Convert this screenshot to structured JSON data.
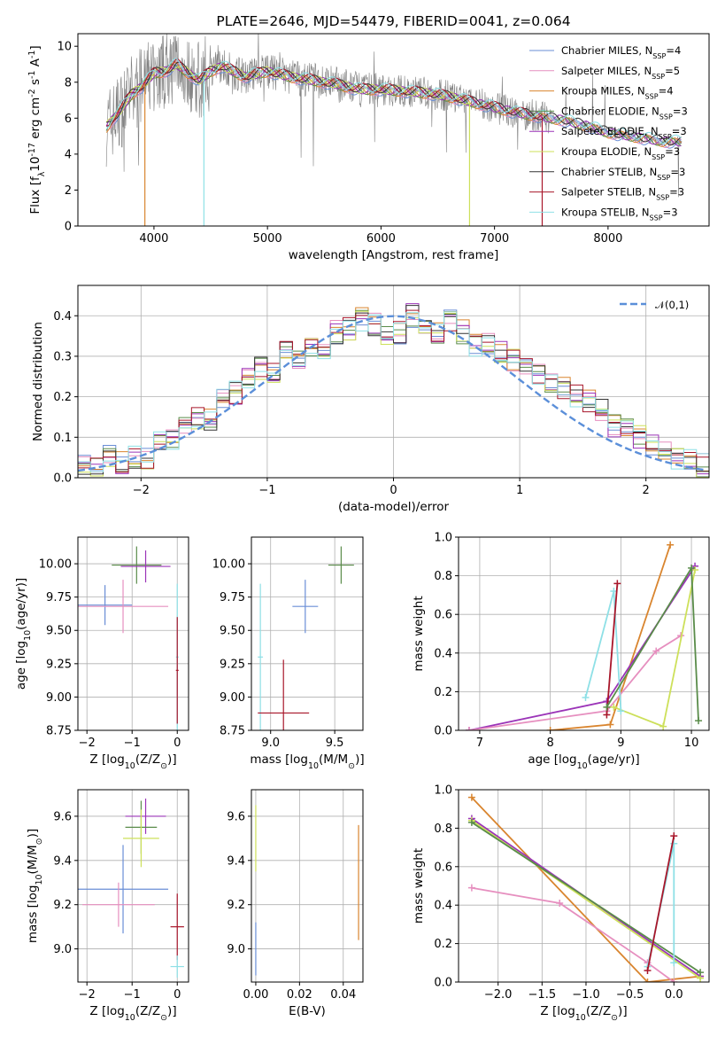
{
  "chart_data": [
    {
      "type": "line",
      "title": "PLATE=2646, MJD=54479, FIBERID=0041, z=0.064",
      "xlabel": "wavelength [Angstrom, rest frame]",
      "ylabel": "Flux [f$_\\lambda$10$^{-17}$ erg cm$^{-2}$ s$^{-1}$ A$^{-1}$]",
      "xlim": [
        3330,
        8890
      ],
      "ylim": [
        0,
        10.7
      ],
      "xticks": [
        "4000",
        "5000",
        "6000",
        "7000",
        "8000"
      ],
      "yticks": [
        "0",
        "2",
        "4",
        "6",
        "8",
        "10"
      ],
      "legend": "top-right",
      "series": [
        {
          "name": "Chabrier MILES, N$_{SSP}$=4",
          "color": "#6a8ed6"
        },
        {
          "name": "Salpeter MILES, N$_{SSP}$=5",
          "color": "#e68fbf"
        },
        {
          "name": "Kroupa MILES, N$_{SSP}$=4",
          "color": "#d9852f"
        },
        {
          "name": "Chabrier ELODIE, N$_{SSP}$=3",
          "color": "#5a8c4a"
        },
        {
          "name": "Salpeter ELODIE, N$_{SSP}$=3",
          "color": "#9b34b8"
        },
        {
          "name": "Kroupa ELODIE, N$_{SSP}$=3",
          "color": "#cde05a"
        },
        {
          "name": "Chabrier STELIB, N$_{SSP}$=3",
          "color": "#333333"
        },
        {
          "name": "Salpeter STELIB, N$_{SSP}$=3",
          "color": "#a8162a"
        },
        {
          "name": "Kroupa STELIB, N$_{SSP}$=3",
          "color": "#8ee0e6"
        }
      ],
      "data_continuum": {
        "x": [
          3580,
          3700,
          3800,
          3900,
          4000,
          4100,
          4200,
          4300,
          4400,
          4500,
          4600,
          4800,
          5000,
          5200,
          5400,
          5600,
          5800,
          6000,
          6200,
          6400,
          6600,
          6800,
          7000,
          7200,
          7400,
          7600,
          7800,
          8000,
          8200,
          8400,
          8500,
          8650
        ],
        "y": [
          5.5,
          6.4,
          7.3,
          7.8,
          8.5,
          8.6,
          9.0,
          8.5,
          8.1,
          8.6,
          8.9,
          8.3,
          8.6,
          8.3,
          8.1,
          7.9,
          7.6,
          7.6,
          7.5,
          7.4,
          7.2,
          6.9,
          6.6,
          6.3,
          6.1,
          5.9,
          5.6,
          5.2,
          5.0,
          4.8,
          4.7,
          4.7
        ]
      }
    },
    {
      "type": "bar",
      "title": "",
      "xlabel": "(data-model)/error",
      "ylabel": "Normed distribution",
      "xlim": [
        -2.5,
        2.5
      ],
      "ylim": [
        0,
        0.475
      ],
      "xticks": [
        "−2",
        "−1",
        "0",
        "1",
        "2"
      ],
      "yticks": [
        "0.0",
        "0.1",
        "0.2",
        "0.3",
        "0.4"
      ],
      "legend": "top-right",
      "legend_label": "$\\mathcal{N}(0,1)$",
      "bin_edges_start": -2.5,
      "bin_width": 0.1,
      "reference_histogram": [
        0.03,
        0.03,
        0.05,
        0.04,
        0.05,
        0.05,
        0.09,
        0.09,
        0.12,
        0.15,
        0.14,
        0.19,
        0.21,
        0.24,
        0.27,
        0.26,
        0.31,
        0.3,
        0.33,
        0.32,
        0.36,
        0.37,
        0.39,
        0.38,
        0.35,
        0.36,
        0.4,
        0.37,
        0.36,
        0.39,
        0.36,
        0.33,
        0.33,
        0.31,
        0.29,
        0.28,
        0.25,
        0.23,
        0.22,
        0.2,
        0.19,
        0.17,
        0.13,
        0.12,
        0.1,
        0.08,
        0.06,
        0.05,
        0.04,
        0.03
      ]
    },
    {
      "type": "scatter",
      "xlabel": "Z [log$_{10}$(Z/Z$_\\odot$)]",
      "ylabel": "age  [log$_{10}$(age/yr)]",
      "xlim": [
        -2.2,
        0.25
      ],
      "ylim": [
        8.75,
        10.2
      ],
      "xticks": [
        "−2",
        "−1",
        "0"
      ],
      "yticks": [
        "8.75",
        "9.00",
        "9.25",
        "9.50",
        "9.75",
        "10.00"
      ],
      "points": [
        {
          "x": -1.6,
          "y": 9.69,
          "xerr": 0.6,
          "yerr": 0.15,
          "color": "#6a8ed6"
        },
        {
          "x": -1.2,
          "y": 9.68,
          "xerr": 1.0,
          "yerr": 0.2,
          "color": "#e68fbf"
        },
        {
          "x": -0.9,
          "y": 9.99,
          "xerr": 0.55,
          "yerr": 0.14,
          "color": "#5a8c4a"
        },
        {
          "x": -0.7,
          "y": 9.98,
          "xerr": 0.55,
          "yerr": 0.12,
          "color": "#9b34b8"
        },
        {
          "x": 0.0,
          "y": 9.3,
          "xerr": 0.03,
          "yerr": 0.55,
          "color": "#8ee0e6"
        },
        {
          "x": 0.0,
          "y": 9.2,
          "xerr": 0.03,
          "yerr": 0.4,
          "color": "#a8162a"
        }
      ]
    },
    {
      "type": "scatter",
      "xlabel": "mass [log$_{10}$(M/M$_\\odot$)]",
      "ylabel": "",
      "xlim": [
        8.85,
        9.72
      ],
      "ylim": [
        8.75,
        10.2
      ],
      "xticks": [
        "9.0",
        "9.5"
      ],
      "yticks": [
        "8.75",
        "9.00",
        "9.25",
        "9.50",
        "9.75",
        "10.00"
      ],
      "points": [
        {
          "x": 9.27,
          "y": 9.68,
          "xerr": 0.1,
          "yerr": 0.2,
          "color": "#6a8ed6"
        },
        {
          "x": 9.55,
          "y": 9.99,
          "xerr": 0.1,
          "yerr": 0.14,
          "color": "#5a8c4a"
        },
        {
          "x": 8.92,
          "y": 9.3,
          "xerr": 0.02,
          "yerr": 0.55,
          "color": "#8ee0e6"
        },
        {
          "x": 9.1,
          "y": 8.88,
          "xerr": 0.2,
          "yerr": 0.4,
          "color": "#a8162a"
        }
      ]
    },
    {
      "type": "line",
      "xlabel": "age  [log$_{10}$(age/yr)]",
      "ylabel": "mass weight",
      "xlim": [
        6.7,
        10.25
      ],
      "ylim": [
        0,
        1.0
      ],
      "xticks": [
        "7",
        "8",
        "9",
        "10"
      ],
      "yticks": [
        "0.0",
        "0.2",
        "0.4",
        "0.6",
        "0.8",
        "1.0"
      ],
      "series": [
        {
          "color": "#d9852f",
          "x": [
            8.0,
            8.85,
            9.7
          ],
          "y": [
            0.0,
            0.03,
            0.96
          ]
        },
        {
          "color": "#9b34b8",
          "x": [
            6.85,
            8.8,
            10.05
          ],
          "y": [
            0.0,
            0.15,
            0.85
          ]
        },
        {
          "color": "#e68fbf",
          "x": [
            6.85,
            8.8,
            9.5,
            9.85
          ],
          "y": [
            0.0,
            0.1,
            0.41,
            0.49
          ]
        },
        {
          "color": "#cde05a",
          "x": [
            8.9,
            9.6,
            10.05
          ],
          "y": [
            0.12,
            0.02,
            0.83
          ]
        },
        {
          "color": "#8ee0e6",
          "x": [
            8.5,
            8.9,
            9.0
          ],
          "y": [
            0.17,
            0.72,
            0.1
          ]
        },
        {
          "color": "#a8162a",
          "x": [
            8.8,
            8.95
          ],
          "y": [
            0.08,
            0.76
          ]
        },
        {
          "color": "#5a8c4a",
          "x": [
            8.8,
            10.0,
            10.1
          ],
          "y": [
            0.12,
            0.84,
            0.05
          ]
        }
      ]
    },
    {
      "type": "scatter",
      "xlabel": "Z [log$_{10}$(Z/Z$_\\odot$)]",
      "ylabel": "mass [log$_{10}$(M/M$_\\odot$)]",
      "xlim": [
        -2.2,
        0.25
      ],
      "ylim": [
        8.85,
        9.72
      ],
      "xticks": [
        "−2",
        "−1",
        "0"
      ],
      "yticks": [
        "9.0",
        "9.2",
        "9.4",
        "9.6"
      ],
      "points": [
        {
          "x": -1.2,
          "y": 9.27,
          "xerr": 1.0,
          "yerr": 0.2,
          "color": "#6a8ed6"
        },
        {
          "x": -1.3,
          "y": 9.2,
          "xerr": 0.8,
          "yerr": 0.1,
          "color": "#e68fbf"
        },
        {
          "x": -0.7,
          "y": 9.6,
          "xerr": 0.45,
          "yerr": 0.08,
          "color": "#9b34b8"
        },
        {
          "x": -0.8,
          "y": 9.55,
          "xerr": 0.35,
          "yerr": 0.12,
          "color": "#5a8c4a"
        },
        {
          "x": -0.8,
          "y": 9.5,
          "xerr": 0.4,
          "yerr": 0.13,
          "color": "#cde05a"
        },
        {
          "x": 0.0,
          "y": 9.1,
          "xerr": 0.15,
          "yerr": 0.15,
          "color": "#a8162a"
        },
        {
          "x": 0.0,
          "y": 8.92,
          "xerr": 0.15,
          "yerr": 0.05,
          "color": "#8ee0e6"
        }
      ]
    },
    {
      "type": "scatter",
      "xlabel": "E(B-V)",
      "ylabel": "",
      "xlim": [
        -0.002,
        0.049
      ],
      "ylim": [
        8.85,
        9.72
      ],
      "xticks": [
        "0.00",
        "0.02",
        "0.04"
      ],
      "yticks": [
        "9.0",
        "9.2",
        "9.4",
        "9.6"
      ],
      "points": [
        {
          "x": 0.0,
          "y": 9.5,
          "yerr": 0.15,
          "color": "#cde05a"
        },
        {
          "x": 0.0,
          "y": 9.0,
          "yerr": 0.12,
          "color": "#6a8ed6"
        },
        {
          "x": 0.047,
          "y": 9.3,
          "yerr": 0.26,
          "color": "#d9852f"
        }
      ]
    },
    {
      "type": "line",
      "xlabel": "Z [log$_{10}$(Z/Z$_\\odot$)]",
      "ylabel": "mass weight",
      "xlim": [
        -2.45,
        0.4
      ],
      "ylim": [
        0,
        1.0
      ],
      "xticks": [
        "−2.0",
        "−1.5",
        "−1.0",
        "−0.5",
        "0.0"
      ],
      "yticks": [
        "0.0",
        "0.2",
        "0.4",
        "0.6",
        "0.8",
        "1.0"
      ],
      "series": [
        {
          "color": "#d9852f",
          "x": [
            -2.3,
            -0.3,
            0.3
          ],
          "y": [
            0.96,
            0.0,
            0.03
          ]
        },
        {
          "color": "#9b34b8",
          "x": [
            -2.3,
            0.3
          ],
          "y": [
            0.85,
            0.03
          ]
        },
        {
          "color": "#cde05a",
          "x": [
            -2.3,
            0.3
          ],
          "y": [
            0.84,
            0.02
          ]
        },
        {
          "color": "#5a8c4a",
          "x": [
            -2.3,
            0.3
          ],
          "y": [
            0.83,
            0.05
          ]
        },
        {
          "color": "#e68fbf",
          "x": [
            -2.3,
            -1.3,
            -0.3,
            0.0
          ],
          "y": [
            0.49,
            0.41,
            0.1,
            0.0
          ]
        },
        {
          "color": "#8ee0e6",
          "x": [
            -0.3,
            0.0,
            0.0
          ],
          "y": [
            0.08,
            0.72,
            0.1
          ]
        },
        {
          "color": "#a8162a",
          "x": [
            -0.3,
            0.0
          ],
          "y": [
            0.06,
            0.76
          ]
        }
      ]
    }
  ]
}
